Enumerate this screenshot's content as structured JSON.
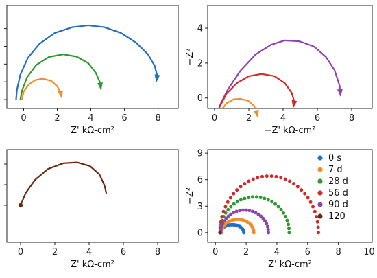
{
  "colors": {
    "blue": "#1f6fc5",
    "orange": "#f28c28",
    "green": "#2e9a2e",
    "red": "#d62728",
    "purple": "#8e44ad",
    "brown": "#6b2a14"
  },
  "chart_data": [
    {
      "type": "line",
      "panel": "top-left",
      "xlabel": "Z' kΩ-cm²",
      "ylabel": "",
      "xlim": [
        -1,
        9.2
      ],
      "ylim": [
        -0.5,
        5.3
      ],
      "xticks": [
        0,
        2,
        4,
        6,
        8
      ],
      "yticks": [
        0,
        1,
        2,
        3,
        4
      ],
      "show_ytick_labels": false,
      "series": [
        {
          "color_key": "blue",
          "arrow": true,
          "x": [
            -0.45,
            -0.4,
            -0.2,
            0.25,
            0.95,
            1.85,
            2.9,
            3.85,
            4.8,
            5.8,
            6.7,
            7.4,
            7.8,
            7.95,
            7.9
          ],
          "y": [
            0.0,
            0.55,
            1.4,
            2.35,
            3.15,
            3.75,
            4.08,
            4.18,
            4.08,
            3.75,
            3.2,
            2.55,
            1.9,
            1.35,
            1.05
          ]
        },
        {
          "color_key": "green",
          "arrow": true,
          "x": [
            -0.2,
            -0.1,
            0.2,
            0.75,
            1.5,
            2.35,
            3.15,
            3.85,
            4.3,
            4.55,
            4.6
          ],
          "y": [
            0.0,
            0.5,
            1.25,
            1.95,
            2.4,
            2.55,
            2.42,
            2.05,
            1.5,
            0.95,
            0.6
          ]
        },
        {
          "color_key": "orange",
          "arrow": true,
          "x": [
            -0.1,
            0.0,
            0.3,
            0.7,
            1.15,
            1.65,
            2.0,
            2.2,
            2.25
          ],
          "y": [
            0.0,
            0.45,
            0.85,
            1.1,
            1.18,
            1.05,
            0.75,
            0.4,
            0.15
          ]
        }
      ]
    },
    {
      "type": "line",
      "panel": "top-right",
      "xlabel": "−Z' kΩ-cm²",
      "ylabel": "−Z²",
      "xlim": [
        -0.4,
        9.2
      ],
      "ylim": [
        -0.6,
        5.3
      ],
      "xticks": [
        0,
        2,
        4,
        6,
        8
      ],
      "yticks": [
        0,
        2,
        4
      ],
      "show_ytick_labels": true,
      "series": [
        {
          "color_key": "purple",
          "arrow": true,
          "x": [
            0.12,
            0.3,
            0.75,
            1.5,
            2.4,
            3.3,
            4.1,
            4.95,
            5.8,
            6.5,
            7.0,
            7.3,
            7.35
          ],
          "y": [
            -1.2,
            -0.45,
            0.45,
            1.55,
            2.5,
            3.05,
            3.3,
            3.25,
            2.95,
            2.35,
            1.6,
            0.7,
            0.15
          ]
        },
        {
          "color_key": "red",
          "arrow": true,
          "x": [
            0.15,
            0.3,
            0.7,
            1.3,
            2.0,
            2.75,
            3.5,
            4.1,
            4.5,
            4.65,
            4.6
          ],
          "y": [
            -1.2,
            -0.5,
            0.25,
            0.85,
            1.25,
            1.38,
            1.25,
            0.85,
            0.3,
            -0.2,
            -0.5
          ]
        },
        {
          "color_key": "orange",
          "arrow": true,
          "x": [
            0.18,
            0.35,
            0.7,
            1.1,
            1.5,
            1.95,
            2.3,
            2.45,
            2.5
          ],
          "y": [
            -1.2,
            -0.75,
            -0.3,
            -0.08,
            -0.05,
            -0.15,
            -0.45,
            -0.8,
            -1.05
          ]
        }
      ]
    },
    {
      "type": "line",
      "panel": "bottom-left",
      "xlabel": "Z' kΩ-cm²",
      "ylabel": "",
      "xlim": [
        -0.8,
        9.2
      ],
      "ylim": [
        -0.9,
        1.35
      ],
      "xticks": [
        0,
        2,
        4,
        6,
        8
      ],
      "yticks": [
        0,
        0.5,
        1.0
      ],
      "show_ytick_labels": false,
      "series": [
        {
          "color_key": "brown",
          "arrow": false,
          "start_marker": true,
          "x": [
            0.0,
            0.3,
            0.85,
            1.6,
            2.5,
            3.3,
            4.05,
            4.6,
            4.9,
            5.0
          ],
          "y": [
            0.0,
            0.3,
            0.62,
            0.88,
            1.02,
            1.04,
            0.95,
            0.75,
            0.48,
            0.3
          ]
        }
      ]
    },
    {
      "type": "scatter",
      "panel": "bottom-right",
      "xlabel": "Z' kΩ-cm²",
      "ylabel": "−Z²",
      "xlim": [
        -0.5,
        10.2
      ],
      "ylim": [
        -1.1,
        9.4
      ],
      "xticks": [
        0,
        2,
        4,
        6,
        8,
        10
      ],
      "yticks": [
        0,
        3,
        6,
        9
      ],
      "show_ytick_labels": true,
      "legend_position": "right",
      "series": [
        {
          "name": "0 s",
          "color_key": "blue",
          "center": 1.1,
          "radius": 0.75,
          "peak": 0.9,
          "n": 22
        },
        {
          "name": "7 d",
          "color_key": "orange",
          "center": 1.45,
          "radius": 1.05,
          "peak": 1.5,
          "n": 24
        },
        {
          "name": "28 d",
          "color_key": "green",
          "center": 2.55,
          "radius": 2.25,
          "peak": 4.05,
          "n": 28
        },
        {
          "name": "56 d",
          "color_key": "red",
          "center": 3.5,
          "radius": 3.2,
          "peak": 6.4,
          "n": 34
        },
        {
          "name": "90 d",
          "color_key": "purple",
          "center": 1.9,
          "radius": 1.55,
          "peak": 2.55,
          "n": 24
        },
        {
          "name": "120",
          "color_key": "brown",
          "center": 0.3,
          "radius": 0.0,
          "peak": 0.0,
          "n": 1
        }
      ]
    }
  ]
}
